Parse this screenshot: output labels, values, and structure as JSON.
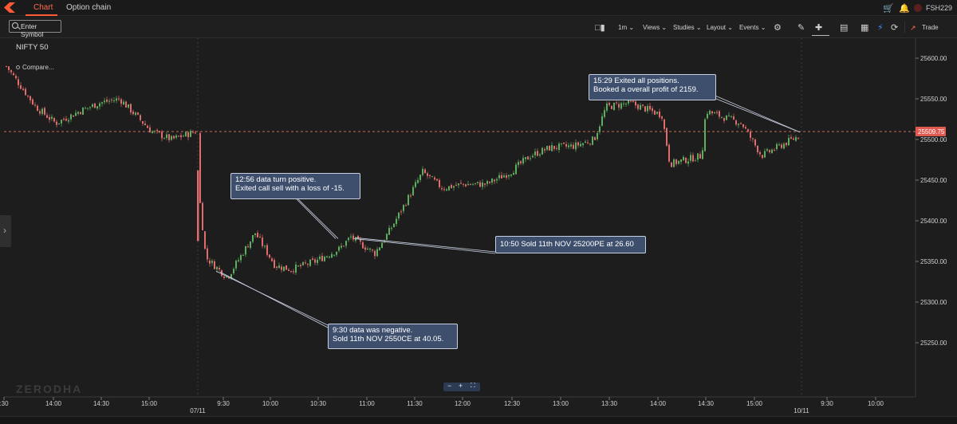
{
  "nav": {
    "tabs": [
      {
        "label": "Chart",
        "active": true
      },
      {
        "label": "Option chain",
        "active": false
      }
    ],
    "user": "FSH229",
    "icons": [
      "cart-icon",
      "bell-icon",
      "user-avatar"
    ]
  },
  "toolbar": {
    "symbol_placeholder": "Enter Symbol",
    "items": [
      "1m",
      "Views",
      "Studies",
      "Layout",
      "Events"
    ],
    "trade_label": "Trade",
    "icons": [
      "candlestick-icon",
      "gear-icon",
      "pencil-icon",
      "crosshair-icon",
      "comment-icon",
      "table-icon",
      "flash-icon",
      "refresh-icon",
      "trade-icon"
    ]
  },
  "chart": {
    "symbol": "NIFTY 50",
    "compare_label": "Compare...",
    "watermark": "ZERODHA",
    "colors": {
      "up": "#5fae5f",
      "down": "#e06d6d",
      "annotation_bg": "#3e4f6e",
      "last_price_bg": "#e05a4f",
      "background": "#1d1d1d"
    }
  },
  "chart_data": {
    "type": "line",
    "subtype": "candlestick",
    "interval": "1m",
    "y_ticks": [
      25250,
      25300,
      25350,
      25400,
      25450,
      25500,
      25550,
      25600
    ],
    "y_tick_labels": [
      "25250.00",
      "25300.00",
      "25350.00",
      "25400.00",
      "25450.00",
      "25500.00",
      "25550.00",
      "25600.00"
    ],
    "ylim": [
      25237,
      25618
    ],
    "last_price": 25509.75,
    "last_price_label": "25509.75",
    "x_ticks": [
      ":30",
      "14:00",
      "14:30",
      "15:00",
      "9:30",
      "10:00",
      "10:30",
      "11:00",
      "11:30",
      "12:00",
      "12:30",
      "13:00",
      "13:30",
      "14:00",
      "14:30",
      "15:00",
      "9:30",
      "10:00"
    ],
    "date_labels": [
      "07/11",
      "10/11"
    ],
    "x": [
      "06/11 13:30",
      "06/11 13:45",
      "06/11 14:00",
      "06/11 14:15",
      "06/11 14:30",
      "06/11 14:45",
      "06/11 15:00",
      "06/11 15:15",
      "06/11 15:30",
      "07/11 09:15",
      "07/11 09:20",
      "07/11 09:30",
      "07/11 09:40",
      "07/11 09:50",
      "07/11 10:00",
      "07/11 10:15",
      "07/11 10:30",
      "07/11 10:45",
      "07/11 10:50",
      "07/11 11:00",
      "07/11 11:10",
      "07/11 11:30",
      "07/11 11:45",
      "07/11 12:00",
      "07/11 12:15",
      "07/11 12:30",
      "07/11 12:45",
      "07/11 13:00",
      "07/11 13:15",
      "07/11 13:25",
      "07/11 13:30",
      "07/11 13:45",
      "07/11 14:00",
      "07/11 14:15",
      "07/11 14:30",
      "07/11 14:45",
      "07/11 15:00",
      "07/11 15:15",
      "07/11 15:29"
    ],
    "series": [
      {
        "values": [
          25590,
          25540,
          25520,
          25535,
          25545,
          25550,
          25510,
          25500,
          25510,
          25440,
          25355,
          25330,
          25385,
          25345,
          25340,
          25350,
          25365,
          25380,
          25375,
          25360,
          25390,
          25460,
          25440,
          25445,
          25445,
          25460,
          25480,
          25490,
          25492,
          25500,
          25540,
          25545,
          25530,
          25470,
          25480,
          25535,
          25520,
          25480,
          25505
        ]
      }
    ],
    "annotations": [
      {
        "text": "15:29 Exited all positions.\nBooked a overall profit of 2159.",
        "x": "07/11 15:29",
        "y": 25509.75
      },
      {
        "text": "12:56 data turn positive.\nExited call sell with a loss of -15.",
        "x": "07/11 10:45",
        "y": 25378
      },
      {
        "text": "10:50 Sold 11th NOV 25200PE at 26.60",
        "x": "07/11 10:50",
        "y": 25378
      },
      {
        "text": "9:30  data was negative.\nSold 11th NOV 2550CE at 40.05.",
        "x": "07/11 09:30",
        "y": 25338
      }
    ],
    "grid": false,
    "legend": "none"
  }
}
